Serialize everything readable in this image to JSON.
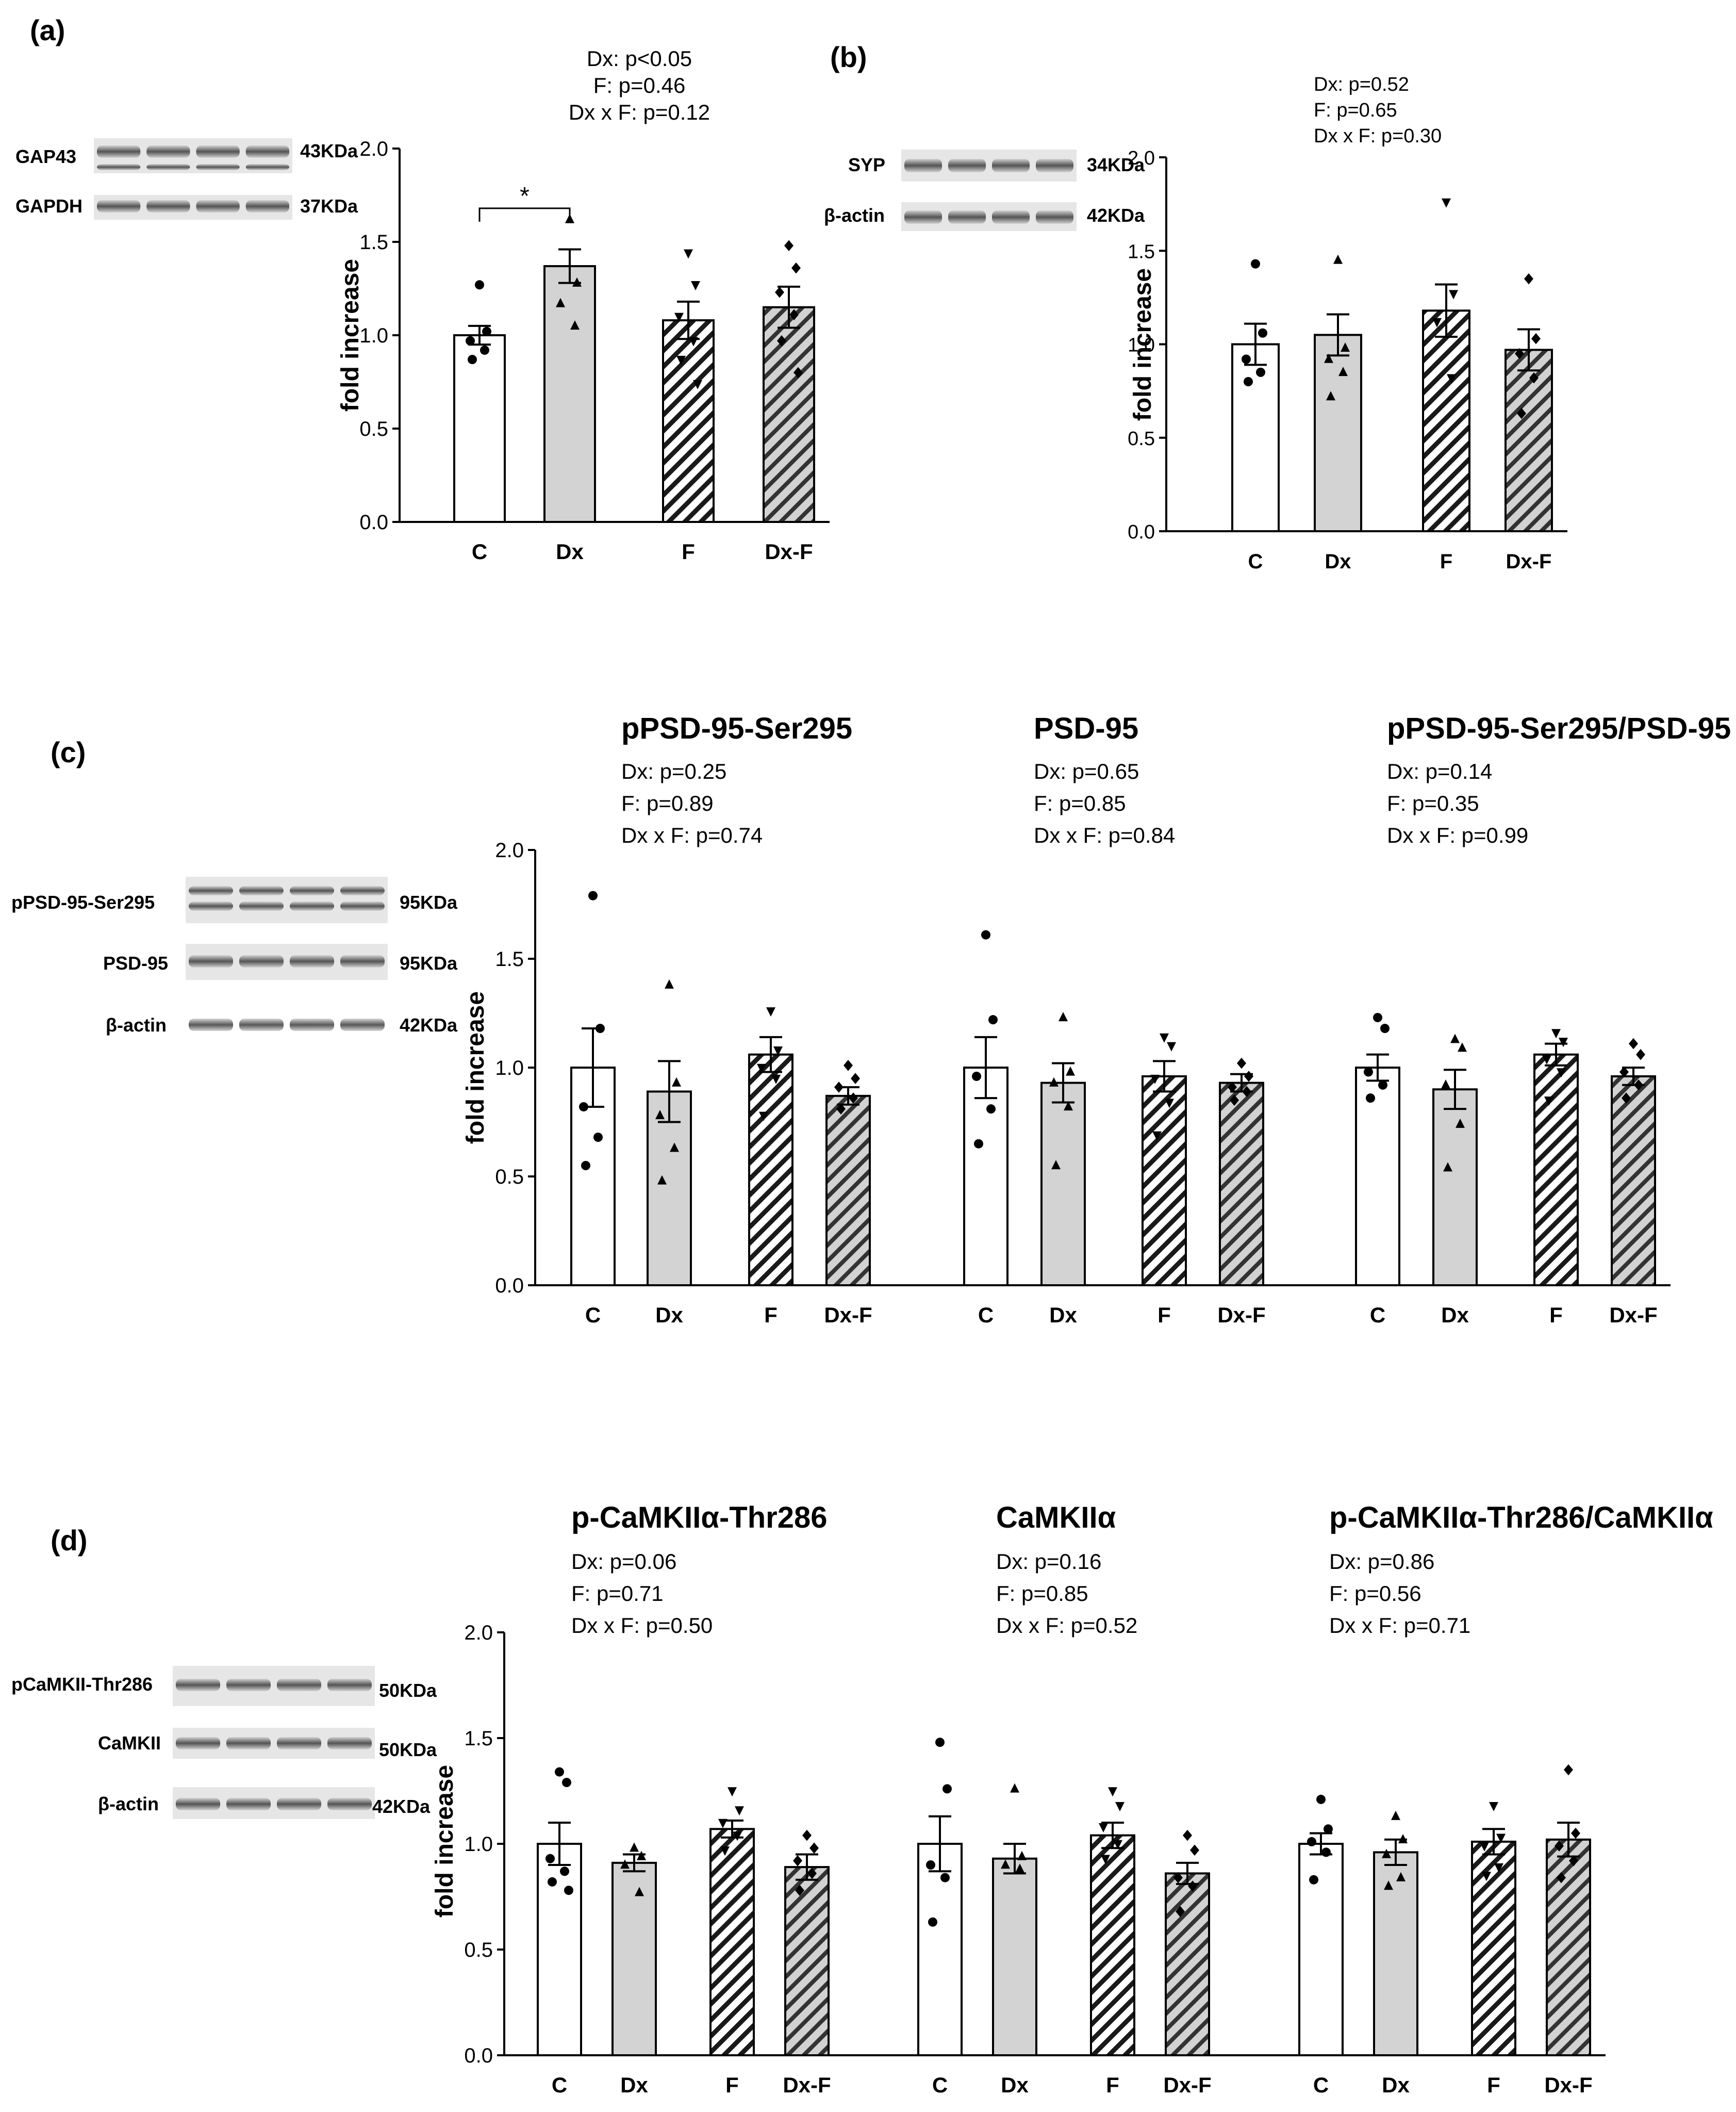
{
  "panels": {
    "a": {
      "label": "(a)",
      "blot": {
        "rows": [
          {
            "protein": "GAP43",
            "kda": "43KDa"
          },
          {
            "protein": "GAPDH",
            "kda": "37KDa"
          }
        ]
      },
      "stats": [
        "Dx: p<0.05",
        "F:  p=0.46",
        "Dx x F: p=0.12"
      ],
      "significance": "*"
    },
    "b": {
      "label": "(b)",
      "blot": {
        "rows": [
          {
            "protein": "SYP",
            "kda": "34KDa"
          },
          {
            "protein": "β-actin",
            "kda": "42KDa"
          }
        ]
      },
      "stats": [
        "Dx: p=0.52",
        "F:  p=0.65",
        "Dx x F: p=0.30"
      ]
    },
    "c": {
      "label": "(c)",
      "blot": {
        "rows": [
          {
            "protein": "pPSD-95-Ser295",
            "kda": "95KDa"
          },
          {
            "protein": "PSD-95",
            "kda": "95KDa"
          },
          {
            "protein": "β-actin",
            "kda": "42KDa"
          }
        ]
      },
      "groups": [
        {
          "title": "pPSD-95-Ser295",
          "stats": [
            "Dx: p=0.25",
            "F:  p=0.89",
            "Dx x F: p=0.74"
          ]
        },
        {
          "title": "PSD-95",
          "stats": [
            "Dx: p=0.65",
            "F:  p=0.85",
            "Dx x F: p=0.84"
          ]
        },
        {
          "title": "pPSD-95-Ser295/PSD-95",
          "stats": [
            "Dx: p=0.14",
            "F:  p=0.35",
            "Dx x F: p=0.99"
          ]
        }
      ]
    },
    "d": {
      "label": "(d)",
      "blot": {
        "rows": [
          {
            "protein": "pCaMKII-Thr286",
            "kda": "50KDa"
          },
          {
            "protein": "CaMKII",
            "kda": "50KDa"
          },
          {
            "protein": "β-actin",
            "kda": "42KDa"
          }
        ]
      },
      "groups": [
        {
          "title": "p-CaMKIIα-Thr286",
          "stats": [
            "Dx: p=0.06",
            "F:  p=0.71",
            "Dx x F: p=0.50"
          ]
        },
        {
          "title": "CaMKIIα",
          "stats": [
            "Dx: p=0.16",
            "F:  p=0.85",
            "Dx x F: p=0.52"
          ]
        },
        {
          "title": "p-CaMKIIα-Thr286/CaMKIIα",
          "stats": [
            "Dx: p=0.86",
            "F:  p=0.56",
            "Dx x F: p=0.71"
          ]
        }
      ]
    }
  },
  "chart_data": [
    {
      "id": "a",
      "type": "bar",
      "title": "GAP43",
      "categories": [
        "C",
        "Dx",
        "F",
        "Dx-F"
      ],
      "ylabel": "fold increase",
      "ylim": [
        0,
        2.0
      ],
      "yticks": [
        0.0,
        0.5,
        1.0,
        1.5,
        2.0
      ],
      "series": [
        {
          "name": "GAP43/GAPDH",
          "values": [
            1.0,
            1.37,
            1.08,
            1.15
          ],
          "sem": [
            0.05,
            0.09,
            0.1,
            0.11
          ],
          "points": [
            [
              1.27,
              1.02,
              0.97,
              0.92,
              0.87
            ],
            [
              1.62,
              1.28,
              1.17,
              1.05
            ],
            [
              1.44,
              1.27,
              1.1,
              0.97,
              0.87,
              0.74
            ],
            [
              1.48,
              1.36,
              1.23,
              1.11,
              0.97,
              0.8
            ]
          ]
        }
      ],
      "annotations": [
        {
          "type": "significance",
          "between": [
            "C",
            "Dx"
          ],
          "label": "*"
        }
      ]
    },
    {
      "id": "b",
      "type": "bar",
      "title": "SYP",
      "categories": [
        "C",
        "Dx",
        "F",
        "Dx-F"
      ],
      "ylabel": "fold increase",
      "ylim": [
        0,
        2.0
      ],
      "yticks": [
        0.0,
        0.5,
        1.0,
        1.5,
        2.0
      ],
      "series": [
        {
          "name": "SYP/β-actin",
          "values": [
            1.0,
            1.05,
            1.18,
            0.97
          ],
          "sem": [
            0.11,
            0.11,
            0.14,
            0.11
          ],
          "points": [
            [
              1.43,
              1.06,
              0.92,
              0.85,
              0.8
            ],
            [
              1.45,
              0.98,
              0.92,
              0.85,
              0.72
            ],
            [
              1.76,
              1.27,
              1.12,
              0.82
            ],
            [
              1.35,
              1.03,
              0.95,
              0.82,
              0.63
            ]
          ]
        }
      ]
    },
    {
      "id": "c",
      "type": "bar",
      "groups": [
        "pPSD-95-Ser295",
        "PSD-95",
        "pPSD-95-Ser295/PSD-95"
      ],
      "categories": [
        "C",
        "Dx",
        "F",
        "Dx-F"
      ],
      "ylabel": "fold increase",
      "ylim": [
        0,
        2.0
      ],
      "yticks": [
        0.0,
        0.5,
        1.0,
        1.5,
        2.0
      ],
      "series": [
        {
          "name": "pPSD-95-Ser295",
          "values": [
            1.0,
            0.89,
            1.06,
            0.87
          ],
          "sem": [
            0.18,
            0.14,
            0.08,
            0.04
          ],
          "points": [
            [
              1.79,
              1.18,
              0.82,
              0.68,
              0.55
            ],
            [
              1.38,
              0.93,
              0.78,
              0.63,
              0.48
            ],
            [
              1.26,
              1.08,
              1.0,
              0.95,
              0.78
            ],
            [
              1.01,
              0.95,
              0.91,
              0.86,
              0.81
            ]
          ]
        },
        {
          "name": "PSD-95",
          "values": [
            1.0,
            0.93,
            0.96,
            0.93
          ],
          "sem": [
            0.14,
            0.09,
            0.07,
            0.04
          ],
          "points": [
            [
              1.61,
              1.22,
              0.96,
              0.81,
              0.65
            ],
            [
              1.23,
              0.98,
              0.93,
              0.82,
              0.55
            ],
            [
              1.14,
              1.1,
              0.95,
              0.84,
              0.69
            ],
            [
              1.02,
              0.96,
              0.91,
              0.89,
              0.85
            ]
          ]
        },
        {
          "name": "pPSD-95-Ser295/PSD-95",
          "values": [
            1.0,
            0.9,
            1.06,
            0.96
          ],
          "sem": [
            0.06,
            0.09,
            0.05,
            0.04
          ],
          "points": [
            [
              1.23,
              1.18,
              0.98,
              0.92,
              0.86
            ],
            [
              1.13,
              1.09,
              0.92,
              0.74,
              0.54
            ],
            [
              1.16,
              1.12,
              1.04,
              0.98,
              0.85
            ],
            [
              1.11,
              1.06,
              0.98,
              0.92,
              0.86
            ]
          ]
        }
      ]
    },
    {
      "id": "d",
      "type": "bar",
      "groups": [
        "p-CaMKIIα-Thr286",
        "CaMKIIα",
        "p-CaMKIIα-Thr286/CaMKIIα"
      ],
      "categories": [
        "C",
        "Dx",
        "F",
        "Dx-F"
      ],
      "ylabel": "fold increase",
      "ylim": [
        0,
        2.0
      ],
      "yticks": [
        0.0,
        0.5,
        1.0,
        1.5,
        2.0
      ],
      "series": [
        {
          "name": "p-CaMKIIα-Thr286",
          "values": [
            1.0,
            0.91,
            1.07,
            0.89
          ],
          "sem": [
            0.1,
            0.04,
            0.04,
            0.06
          ],
          "points": [
            [
              1.34,
              1.29,
              0.93,
              0.87,
              0.82,
              0.78
            ],
            [
              0.98,
              0.94,
              0.9,
              0.77
            ],
            [
              1.25,
              1.16,
              1.1,
              1.04,
              0.97
            ],
            [
              1.04,
              0.98,
              0.92,
              0.86,
              0.78
            ]
          ]
        },
        {
          "name": "CaMKIIα",
          "values": [
            1.0,
            0.93,
            1.04,
            0.86
          ],
          "sem": [
            0.13,
            0.07,
            0.06,
            0.05
          ],
          "points": [
            [
              1.48,
              1.26,
              0.9,
              0.84,
              0.63
            ],
            [
              1.26,
              0.94,
              0.9,
              0.88
            ],
            [
              1.25,
              1.18,
              1.08,
              1.0,
              0.93
            ],
            [
              1.04,
              0.97,
              0.84,
              0.8,
              0.68
            ]
          ]
        },
        {
          "name": "p-CaMKIIα-Thr286/CaMKIIα",
          "values": [
            1.0,
            0.96,
            1.01,
            1.02
          ],
          "sem": [
            0.05,
            0.06,
            0.06,
            0.08
          ],
          "points": [
            [
              1.21,
              1.07,
              1.01,
              0.96,
              0.83
            ],
            [
              1.13,
              1.02,
              0.95,
              0.84,
              0.8
            ],
            [
              1.18,
              1.03,
              0.99,
              0.89,
              0.85
            ],
            [
              1.35,
              1.05,
              0.99,
              0.92,
              0.84
            ]
          ]
        }
      ]
    }
  ]
}
